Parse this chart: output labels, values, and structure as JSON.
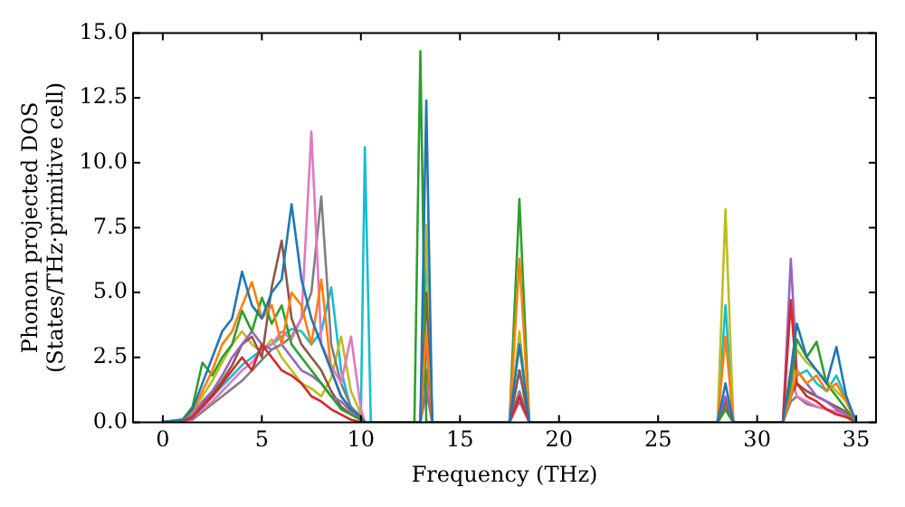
{
  "chart_data": {
    "type": "line",
    "xlabel": "Frequency (THz)",
    "ylabel": "Phonon projected DOS\n(States/THz·primitive cell)",
    "x": [
      0,
      1,
      1.5,
      2,
      2.5,
      3,
      3.5,
      4,
      4.5,
      5,
      5.5,
      6,
      6.5,
      7,
      7.5,
      8,
      8.5,
      9,
      9.5,
      10,
      10.2,
      10.5,
      12.7,
      13,
      13.3,
      13.6,
      17.5,
      18,
      18.5,
      28,
      28.4,
      28.8,
      31.3,
      31.7,
      32,
      32.5,
      33,
      33.5,
      34,
      34.5,
      35
    ],
    "xlim": [
      -1.5,
      36
    ],
    "xticks": [
      0,
      5,
      10,
      15,
      20,
      25,
      30,
      35
    ],
    "ylim": [
      0,
      15
    ],
    "yticks": [
      {
        "value": 0,
        "label": "0.0"
      },
      {
        "value": 2.5,
        "label": "2.5"
      },
      {
        "value": 5,
        "label": "5.0"
      },
      {
        "value": 7.5,
        "label": "7.5"
      },
      {
        "value": 10,
        "label": "10.0"
      },
      {
        "value": 12.5,
        "label": "12.5"
      },
      {
        "value": 15,
        "label": "15.0"
      }
    ],
    "grid": false,
    "legend": false,
    "marker": "none",
    "series": [
      {
        "color": "#1f77b4",
        "values": [
          0,
          0.1,
          0.5,
          1.5,
          2.5,
          3.5,
          4,
          5.8,
          4.5,
          4,
          5,
          5.5,
          8.4,
          5.5,
          4,
          3,
          2,
          1,
          0.5,
          0.2,
          0,
          0,
          0,
          0,
          12.4,
          0,
          0,
          3,
          0,
          0,
          1.5,
          0,
          0,
          2,
          3.8,
          2.5,
          2,
          1.5,
          2.9,
          1,
          0
        ]
      },
      {
        "color": "#ff7f0e",
        "values": [
          0,
          0.1,
          0.4,
          1.2,
          2,
          3,
          3.5,
          4.5,
          5.4,
          4,
          4.5,
          3,
          5,
          4.5,
          3,
          5.5,
          2,
          1,
          0.5,
          0.2,
          0,
          0,
          0,
          0,
          3.5,
          0,
          0,
          6.3,
          0,
          0,
          3.3,
          0,
          0,
          1,
          2,
          1.5,
          1.8,
          1.2,
          1.5,
          0.8,
          0
        ]
      },
      {
        "color": "#2ca02c",
        "values": [
          0,
          0.1,
          0.6,
          2.3,
          1.8,
          2.5,
          3,
          4.3,
          3.5,
          4.8,
          3.8,
          4.5,
          3,
          2.5,
          2,
          1.5,
          1,
          0.5,
          0.3,
          0.1,
          0,
          0,
          0,
          14.3,
          0,
          0,
          0,
          8.6,
          0,
          0,
          0.5,
          0,
          0,
          1.5,
          3.2,
          2.5,
          3.1,
          1.5,
          1,
          0.5,
          0
        ]
      },
      {
        "color": "#d62728",
        "values": [
          0,
          0.05,
          0.2,
          0.6,
          1,
          1.5,
          2,
          2.5,
          2,
          3,
          2.5,
          2,
          1.8,
          1.5,
          1,
          0.8,
          0.5,
          0.3,
          0.1,
          0,
          0,
          0,
          0,
          0,
          3.2,
          0,
          0,
          1,
          0,
          0,
          0.5,
          0,
          0,
          4.7,
          1.5,
          1,
          0.8,
          0.5,
          0.3,
          0.2,
          0
        ]
      },
      {
        "color": "#9467bd",
        "values": [
          0,
          0.05,
          0.3,
          0.8,
          1.2,
          1.8,
          2.5,
          3,
          3.5,
          3,
          2.8,
          3,
          2.5,
          2,
          1.8,
          1.5,
          1,
          0.8,
          0.4,
          0.1,
          0,
          0,
          0,
          0,
          1.2,
          0,
          0,
          0.8,
          0,
          0,
          1,
          0,
          0,
          6.3,
          2,
          1.5,
          1,
          0.8,
          0.5,
          0.3,
          0
        ]
      },
      {
        "color": "#8c564b",
        "values": [
          0,
          0.05,
          0.2,
          0.7,
          1.1,
          1.6,
          2.2,
          3,
          3.3,
          2.5,
          5.2,
          7,
          4,
          3,
          2.5,
          2,
          1.2,
          0.6,
          0.3,
          0.1,
          0,
          0,
          0,
          0,
          5,
          0,
          0,
          2,
          0,
          0,
          0.8,
          0,
          0,
          1,
          1.5,
          1.2,
          1,
          0.8,
          0.6,
          0.4,
          0
        ]
      },
      {
        "color": "#e377c2",
        "values": [
          0,
          0.05,
          0.2,
          0.5,
          0.8,
          1.2,
          1.6,
          2,
          2.3,
          2.8,
          3,
          3.5,
          3.2,
          4,
          11.2,
          3,
          2.2,
          1.5,
          3.3,
          0.5,
          0,
          0,
          0,
          0,
          1.5,
          0,
          0,
          1,
          0,
          0,
          0.5,
          0,
          0,
          2,
          1,
          0.8,
          0.6,
          0.5,
          0.4,
          0.2,
          0
        ]
      },
      {
        "color": "#7f7f7f",
        "values": [
          0,
          0.05,
          0.1,
          0.4,
          0.7,
          1,
          1.3,
          1.6,
          2,
          2.4,
          2.8,
          3,
          3.3,
          4,
          5,
          8.7,
          3,
          1.5,
          0.6,
          0.2,
          0,
          0,
          0,
          0,
          2,
          0,
          0,
          1.2,
          0,
          0,
          0.6,
          0,
          0,
          0.8,
          1,
          0.7,
          0.6,
          0.5,
          0.4,
          0.2,
          0
        ]
      },
      {
        "color": "#bcbd22",
        "values": [
          0,
          0.1,
          0.4,
          1,
          1.6,
          2.3,
          3,
          3.5,
          3,
          2.7,
          3.2,
          2.5,
          2,
          1.5,
          1.3,
          1,
          1.7,
          3.3,
          1.2,
          0.3,
          0,
          0,
          0,
          0,
          7.6,
          0,
          0,
          3.5,
          0,
          0,
          8.2,
          0,
          0,
          1.2,
          2.8,
          2.3,
          2,
          1.6,
          1.2,
          0.8,
          0
        ]
      },
      {
        "color": "#17becf",
        "values": [
          null,
          null,
          null,
          0.6,
          1,
          1.4,
          1.8,
          2.2,
          2.5,
          2.8,
          3,
          3.3,
          3.6,
          3.5,
          3,
          3.5,
          5.2,
          2,
          0.5,
          0.3,
          10.6,
          0,
          0,
          0,
          6.8,
          0,
          0,
          2,
          0,
          0,
          4.5,
          0,
          0,
          1,
          1.8,
          2,
          1.5,
          1.2,
          1.8,
          0.9,
          0
        ]
      }
    ]
  }
}
